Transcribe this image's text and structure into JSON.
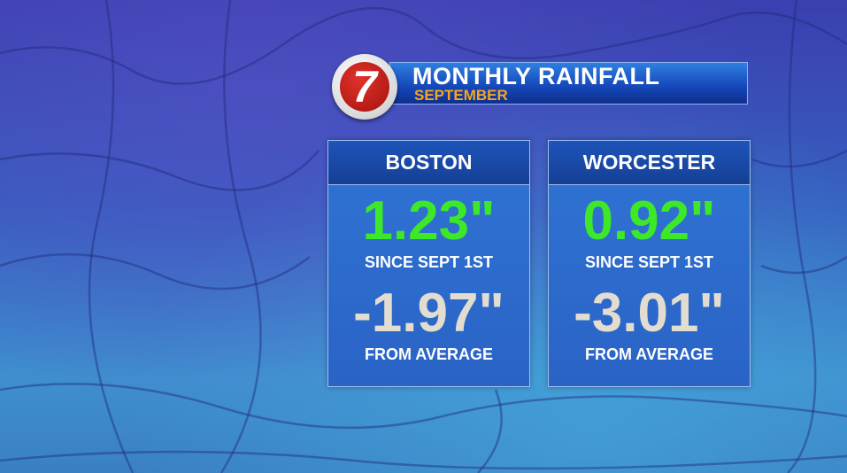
{
  "header": {
    "logo": "7",
    "title": "MONTHLY RAINFALL",
    "subtitle": "SEPTEMBER"
  },
  "panels": [
    {
      "city": "BOSTON",
      "total": "1.23\"",
      "total_label": "SINCE SEPT 1ST",
      "departure": "-1.97\"",
      "departure_label": "FROM AVERAGE"
    },
    {
      "city": "WORCESTER",
      "total": "0.92\"",
      "total_label": "SINCE SEPT 1ST",
      "departure": "-3.01\"",
      "departure_label": "FROM AVERAGE"
    }
  ]
}
